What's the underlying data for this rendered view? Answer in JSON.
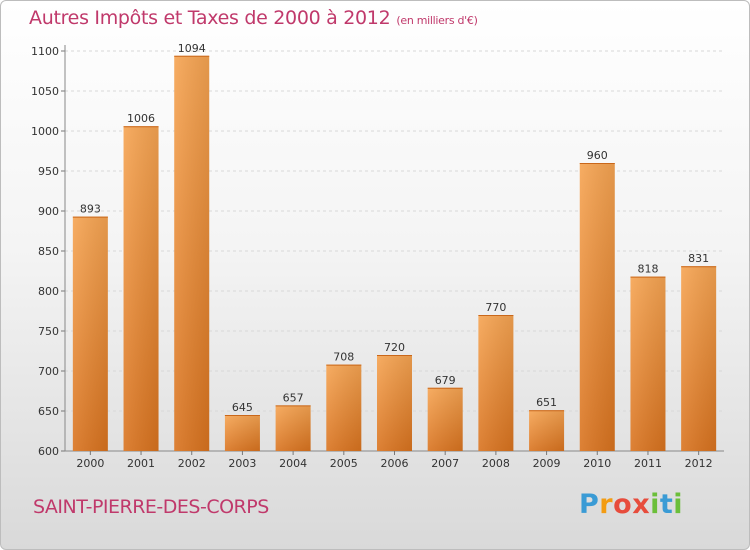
{
  "header": {
    "title": "Autres Impôts et Taxes de 2000 à 2012",
    "subtitle": "(en milliers d'€)"
  },
  "footer": {
    "city": "SAINT-PIERRE-DES-CORPS",
    "brand": "Proxiti"
  },
  "colors": {
    "title": "#c0396b",
    "bar_top": "#f6a452",
    "bar_bottom": "#d9731f"
  },
  "chart_data": {
    "type": "bar",
    "title": "Autres Impôts et Taxes de 2000 à 2012",
    "subtitle": "(en milliers d'€)",
    "categories": [
      "2000",
      "2001",
      "2002",
      "2003",
      "2004",
      "2005",
      "2006",
      "2007",
      "2008",
      "2009",
      "2010",
      "2011",
      "2012"
    ],
    "values": [
      893,
      1006,
      1094,
      645,
      657,
      708,
      720,
      679,
      770,
      651,
      960,
      818,
      831
    ],
    "ylim": [
      600,
      1100
    ],
    "yticks": [
      600,
      650,
      700,
      750,
      800,
      850,
      900,
      950,
      1000,
      1050,
      1100
    ],
    "grid": true,
    "data_labels": true
  }
}
